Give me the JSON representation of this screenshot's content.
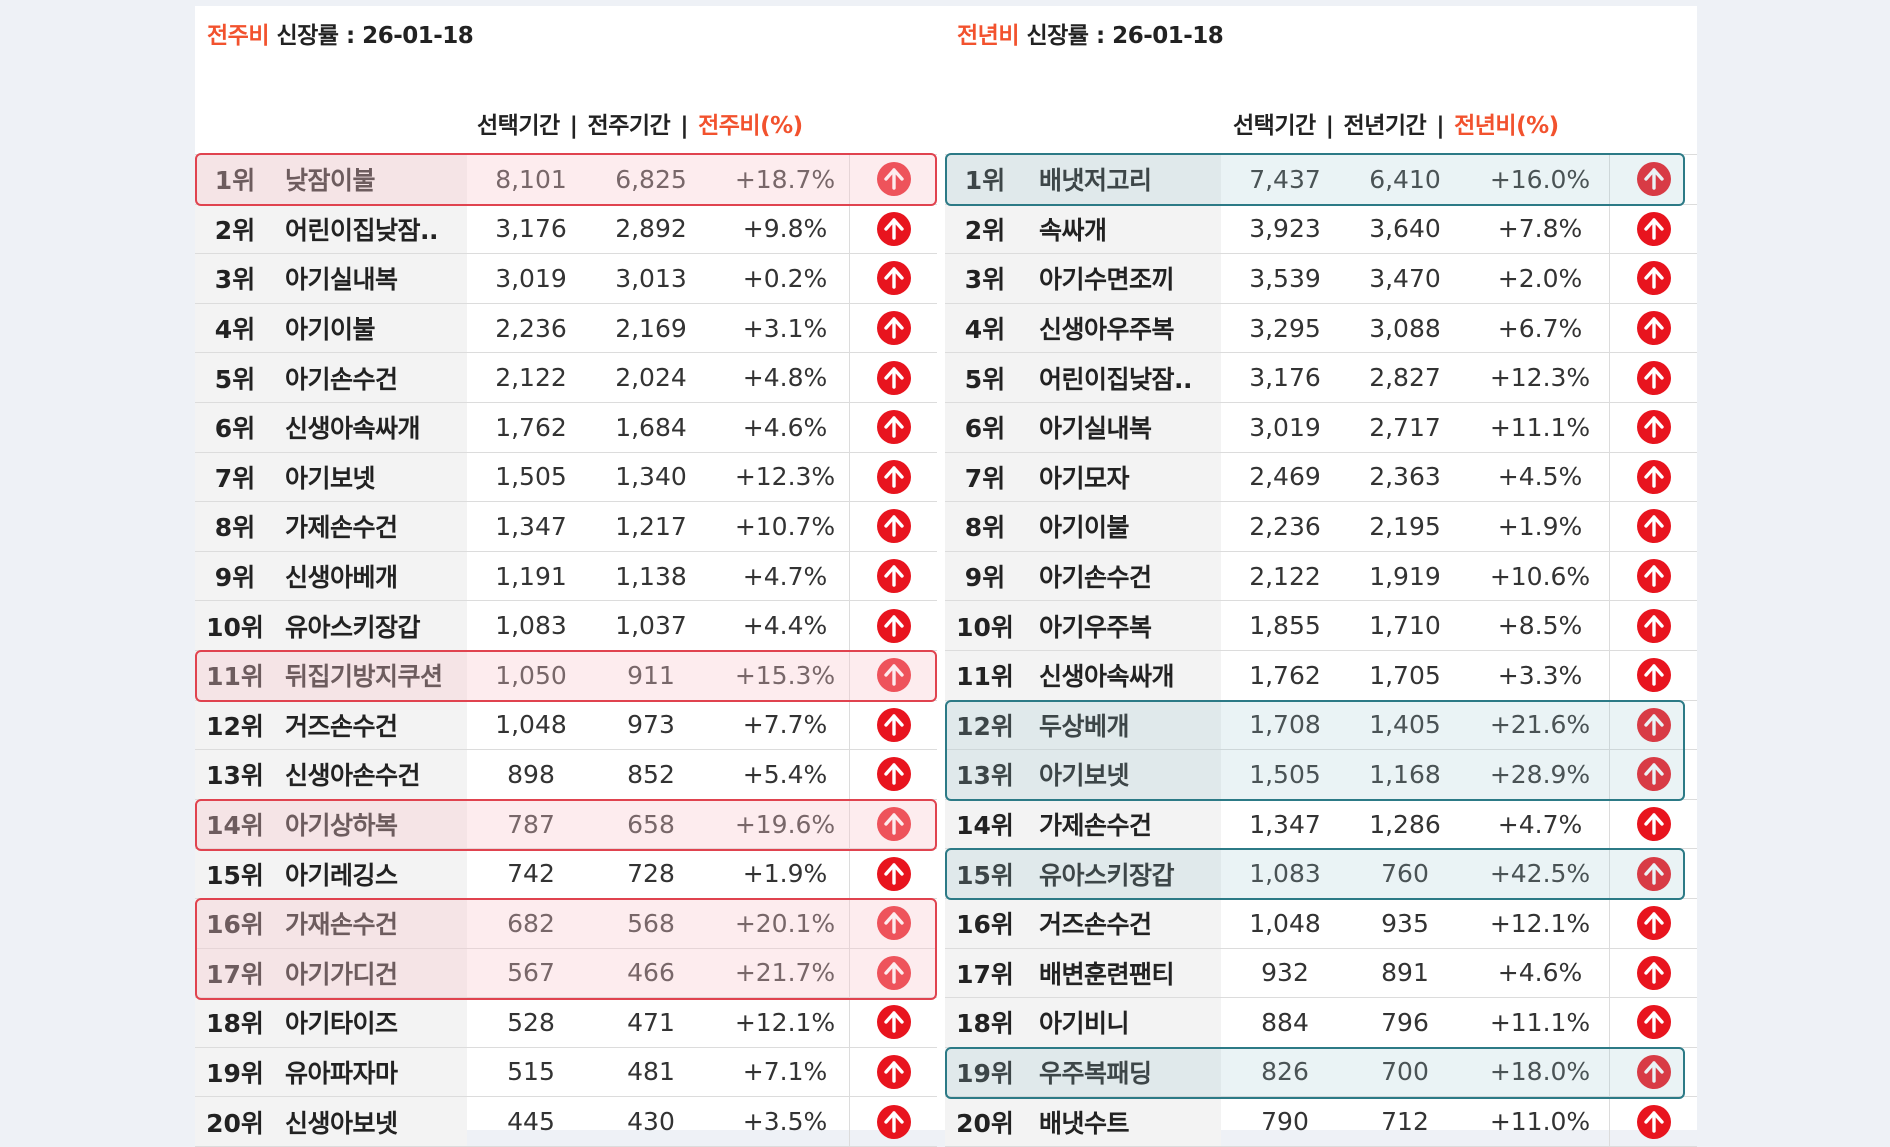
{
  "left": {
    "title_accent": "전주비",
    "title_rest": " 신장률 : 26-01-18",
    "headers": {
      "sel": "선택기간",
      "prev": "전주기간",
      "pct": "전주비(%)"
    },
    "rows": [
      {
        "rank": "1위",
        "kw": "낮잠이불",
        "sel": "8,101",
        "prev": "6,825",
        "pct": "+18.7%"
      },
      {
        "rank": "2위",
        "kw": "어린이집낮잠..",
        "sel": "3,176",
        "prev": "2,892",
        "pct": "+9.8%"
      },
      {
        "rank": "3위",
        "kw": "아기실내복",
        "sel": "3,019",
        "prev": "3,013",
        "pct": "+0.2%"
      },
      {
        "rank": "4위",
        "kw": "아기이불",
        "sel": "2,236",
        "prev": "2,169",
        "pct": "+3.1%"
      },
      {
        "rank": "5위",
        "kw": "아기손수건",
        "sel": "2,122",
        "prev": "2,024",
        "pct": "+4.8%"
      },
      {
        "rank": "6위",
        "kw": "신생아속싸개",
        "sel": "1,762",
        "prev": "1,684",
        "pct": "+4.6%"
      },
      {
        "rank": "7위",
        "kw": "아기보넷",
        "sel": "1,505",
        "prev": "1,340",
        "pct": "+12.3%"
      },
      {
        "rank": "8위",
        "kw": "가제손수건",
        "sel": "1,347",
        "prev": "1,217",
        "pct": "+10.7%"
      },
      {
        "rank": "9위",
        "kw": "신생아베개",
        "sel": "1,191",
        "prev": "1,138",
        "pct": "+4.7%"
      },
      {
        "rank": "10위",
        "kw": "유아스키장갑",
        "sel": "1,083",
        "prev": "1,037",
        "pct": "+4.4%"
      },
      {
        "rank": "11위",
        "kw": "뒤집기방지쿠션",
        "sel": "1,050",
        "prev": "911",
        "pct": "+15.3%"
      },
      {
        "rank": "12위",
        "kw": "거즈손수건",
        "sel": "1,048",
        "prev": "973",
        "pct": "+7.7%"
      },
      {
        "rank": "13위",
        "kw": "신생아손수건",
        "sel": "898",
        "prev": "852",
        "pct": "+5.4%"
      },
      {
        "rank": "14위",
        "kw": "아기상하복",
        "sel": "787",
        "prev": "658",
        "pct": "+19.6%"
      },
      {
        "rank": "15위",
        "kw": "아기레깅스",
        "sel": "742",
        "prev": "728",
        "pct": "+1.9%"
      },
      {
        "rank": "16위",
        "kw": "가재손수건",
        "sel": "682",
        "prev": "568",
        "pct": "+20.1%"
      },
      {
        "rank": "17위",
        "kw": "아기가디건",
        "sel": "567",
        "prev": "466",
        "pct": "+21.7%"
      },
      {
        "rank": "18위",
        "kw": "아기타이즈",
        "sel": "528",
        "prev": "471",
        "pct": "+12.1%"
      },
      {
        "rank": "19위",
        "kw": "유아파자마",
        "sel": "515",
        "prev": "481",
        "pct": "+7.1%"
      },
      {
        "rank": "20위",
        "kw": "신생아보넷",
        "sel": "445",
        "prev": "430",
        "pct": "+3.5%"
      }
    ]
  },
  "right": {
    "title_accent": "전년비",
    "title_rest": " 신장률 : 26-01-18",
    "headers": {
      "sel": "선택기간",
      "prev": "전년기간",
      "pct": "전년비(%)"
    },
    "rows": [
      {
        "rank": "1위",
        "kw": "배냇저고리",
        "sel": "7,437",
        "prev": "6,410",
        "pct": "+16.0%"
      },
      {
        "rank": "2위",
        "kw": "속싸개",
        "sel": "3,923",
        "prev": "3,640",
        "pct": "+7.8%"
      },
      {
        "rank": "3위",
        "kw": "아기수면조끼",
        "sel": "3,539",
        "prev": "3,470",
        "pct": "+2.0%"
      },
      {
        "rank": "4위",
        "kw": "신생아우주복",
        "sel": "3,295",
        "prev": "3,088",
        "pct": "+6.7%"
      },
      {
        "rank": "5위",
        "kw": "어린이집낮잠..",
        "sel": "3,176",
        "prev": "2,827",
        "pct": "+12.3%"
      },
      {
        "rank": "6위",
        "kw": "아기실내복",
        "sel": "3,019",
        "prev": "2,717",
        "pct": "+11.1%"
      },
      {
        "rank": "7위",
        "kw": "아기모자",
        "sel": "2,469",
        "prev": "2,363",
        "pct": "+4.5%"
      },
      {
        "rank": "8위",
        "kw": "아기이불",
        "sel": "2,236",
        "prev": "2,195",
        "pct": "+1.9%"
      },
      {
        "rank": "9위",
        "kw": "아기손수건",
        "sel": "2,122",
        "prev": "1,919",
        "pct": "+10.6%"
      },
      {
        "rank": "10위",
        "kw": "아기우주복",
        "sel": "1,855",
        "prev": "1,710",
        "pct": "+8.5%"
      },
      {
        "rank": "11위",
        "kw": "신생아속싸개",
        "sel": "1,762",
        "prev": "1,705",
        "pct": "+3.3%"
      },
      {
        "rank": "12위",
        "kw": "두상베개",
        "sel": "1,708",
        "prev": "1,405",
        "pct": "+21.6%"
      },
      {
        "rank": "13위",
        "kw": "아기보넷",
        "sel": "1,505",
        "prev": "1,168",
        "pct": "+28.9%"
      },
      {
        "rank": "14위",
        "kw": "가제손수건",
        "sel": "1,347",
        "prev": "1,286",
        "pct": "+4.7%"
      },
      {
        "rank": "15위",
        "kw": "유아스키장갑",
        "sel": "1,083",
        "prev": "760",
        "pct": "+42.5%"
      },
      {
        "rank": "16위",
        "kw": "거즈손수건",
        "sel": "1,048",
        "prev": "935",
        "pct": "+12.1%"
      },
      {
        "rank": "17위",
        "kw": "배변훈련팬티",
        "sel": "932",
        "prev": "891",
        "pct": "+4.6%"
      },
      {
        "rank": "18위",
        "kw": "아기비니",
        "sel": "884",
        "prev": "796",
        "pct": "+11.1%"
      },
      {
        "rank": "19위",
        "kw": "우주복패딩",
        "sel": "826",
        "prev": "700",
        "pct": "+18.0%"
      },
      {
        "rank": "20위",
        "kw": "배냇수트",
        "sel": "790",
        "prev": "712",
        "pct": "+11.0%"
      }
    ]
  },
  "colors": {
    "accent": "#f2522e",
    "arrow": "#e8141e",
    "highlight_red": "#e0434f",
    "highlight_teal": "#2c7a86"
  },
  "icons": {
    "trend": "up-arrow-icon"
  }
}
